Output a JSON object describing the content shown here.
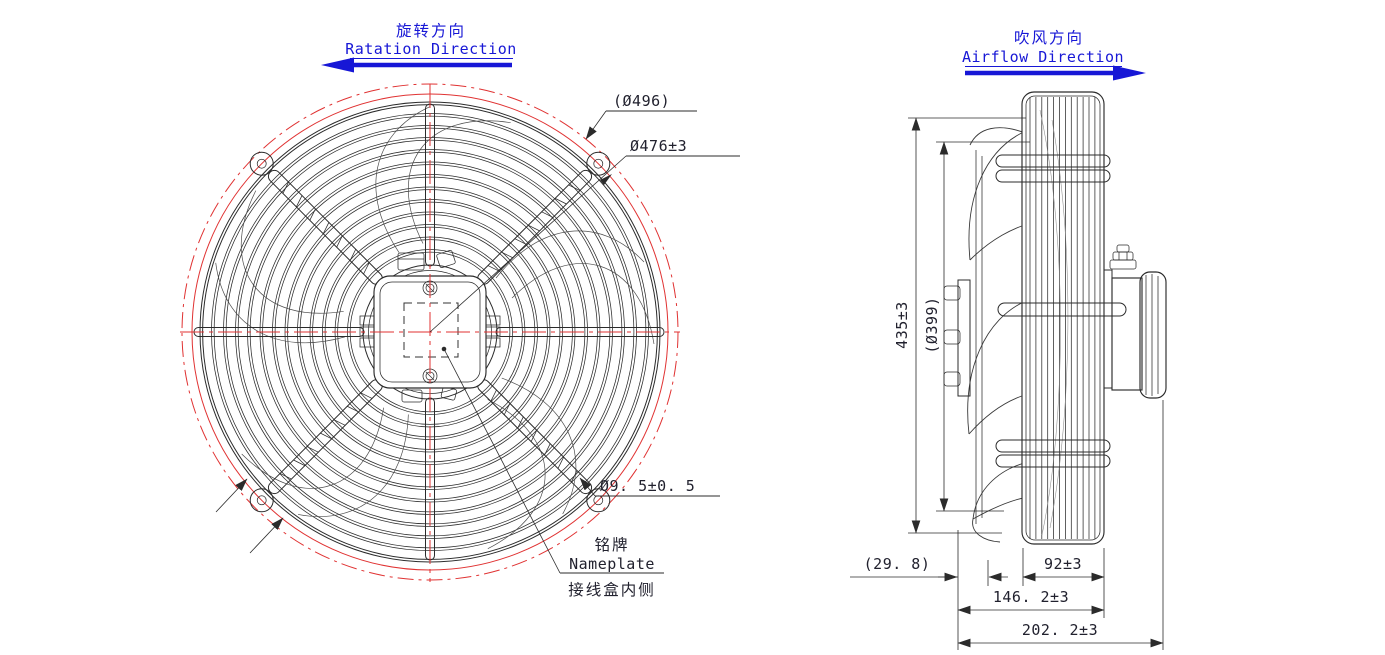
{
  "colors": {
    "background": "#ffffff",
    "line": "#2b2b2b",
    "centerline_red": "#e03232",
    "direction_blue": "#1717d6",
    "dim_text": "#21212e"
  },
  "front_view": {
    "rotation": {
      "cn": "旋转方向",
      "en": "Ratation Direction"
    },
    "dims": {
      "outer_diameter": "(Ø496)",
      "guard_diameter": "Ø476±3",
      "mount_hole": "Ø9. 5±0. 5"
    },
    "nameplate": {
      "cn": "铭牌",
      "en": "Nameplate",
      "note": "接线盒内侧"
    }
  },
  "side_view": {
    "airflow": {
      "cn": "吹风方向",
      "en": "Airflow Direction"
    },
    "dims": {
      "overall_height": "435±3",
      "blade_diameter": "(Ø399)",
      "blade_offset": "(29. 8)",
      "guard_depth": "92±3",
      "mid_depth": "146. 2±3",
      "overall_depth": "202. 2±3"
    }
  }
}
